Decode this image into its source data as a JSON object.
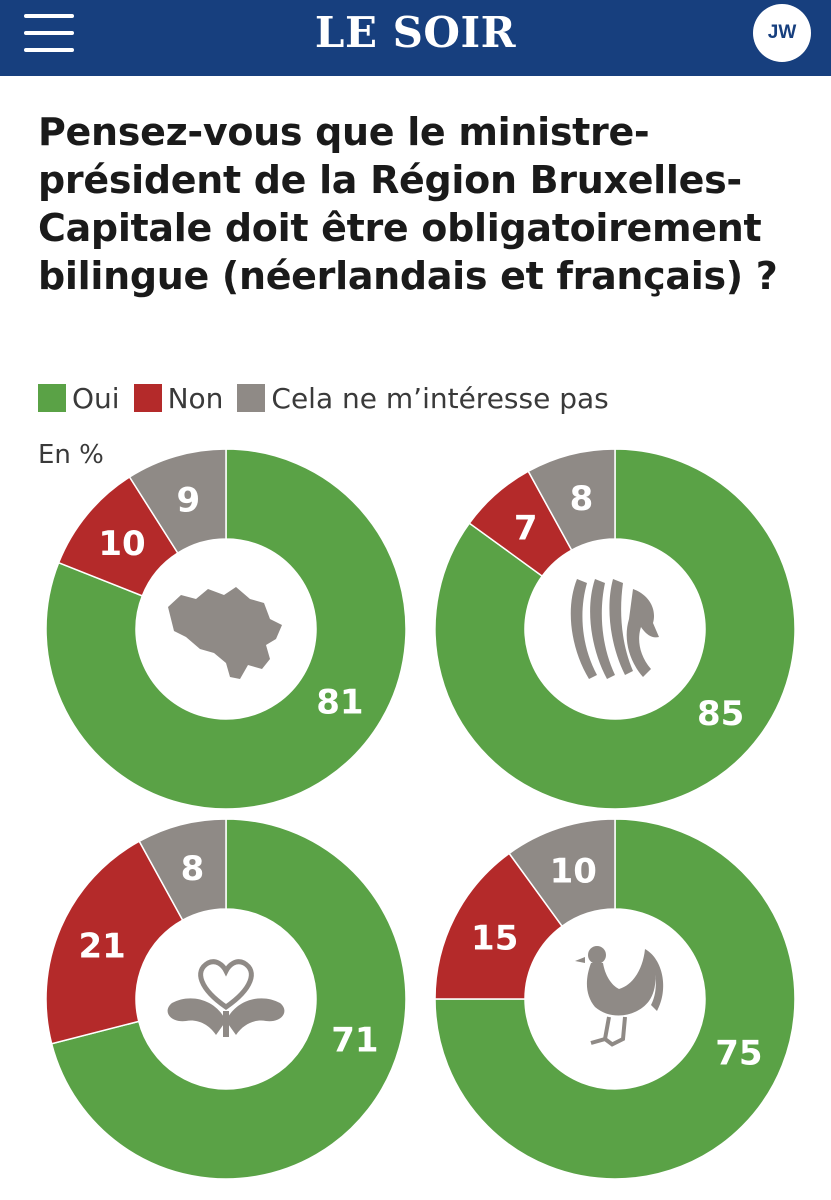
{
  "header": {
    "brand": "LE SOIR",
    "avatar_initials": "JW",
    "background": "#173f7e"
  },
  "chart_data": {
    "type": "donut",
    "title": "Pensez-vous que le ministre-président de la Région Bruxelles-Capitale doit être obligatoirement bilingue (néerlandais et français) ?",
    "unit_label": "En %",
    "legend": [
      {
        "name": "Oui",
        "color": "#5aa246"
      },
      {
        "name": "Non",
        "color": "#b42a2a"
      },
      {
        "name": "Cela ne m’intéresse pas",
        "color": "#8f8a86"
      }
    ],
    "charts": [
      {
        "region": "Belgique",
        "icon": "belgium-map-icon",
        "oui": 81,
        "non": 10,
        "indifferent": 9
      },
      {
        "region": "Flandre",
        "icon": "flemish-lion-icon",
        "oui": 85,
        "non": 7,
        "indifferent": 8
      },
      {
        "region": "Bruxelles",
        "icon": "brussels-iris-heart-icon",
        "oui": 71,
        "non": 21,
        "indifferent": 8
      },
      {
        "region": "Wallonie",
        "icon": "walloon-rooster-icon",
        "oui": 75,
        "non": 15,
        "indifferent": 10
      }
    ]
  }
}
